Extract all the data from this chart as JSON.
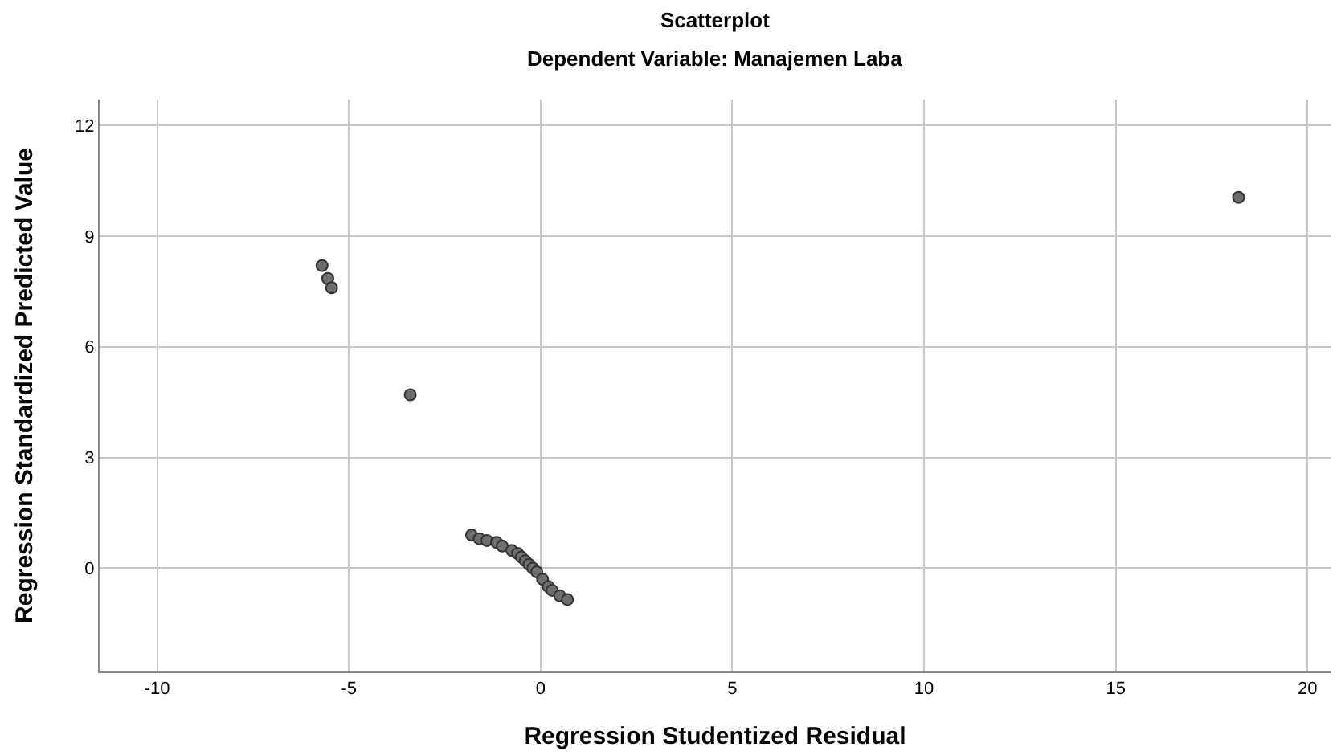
{
  "chart_data": {
    "type": "scatter",
    "title": "Scatterplot",
    "subtitle": "Dependent Variable: Manajemen Laba",
    "xlabel": "Regression Studentized Residual",
    "ylabel": "Regression Standardized Predicted Value",
    "x": [
      18.2,
      -5.7,
      -5.55,
      -5.45,
      -3.4,
      -1.8,
      -1.6,
      -1.4,
      -1.15,
      -1.0,
      -0.75,
      -0.6,
      -0.5,
      -0.4,
      -0.3,
      -0.2,
      -0.1,
      0.05,
      0.2,
      0.3,
      0.5,
      0.7
    ],
    "values": [
      10.05,
      8.2,
      7.85,
      7.6,
      4.7,
      0.9,
      0.8,
      0.75,
      0.7,
      0.6,
      0.48,
      0.4,
      0.3,
      0.2,
      0.1,
      0.0,
      -0.1,
      -0.3,
      -0.5,
      -0.6,
      -0.75,
      -0.85
    ],
    "color": "#6e6e6e",
    "marker": "circle",
    "grid": true,
    "xlim": [
      -11.5,
      20.6
    ],
    "xticks": [
      -10,
      -5,
      0,
      5,
      10,
      15,
      20
    ],
    "ylim": [
      -2.8,
      12.7
    ],
    "yticks": [
      0,
      3,
      6,
      9,
      12
    ]
  }
}
